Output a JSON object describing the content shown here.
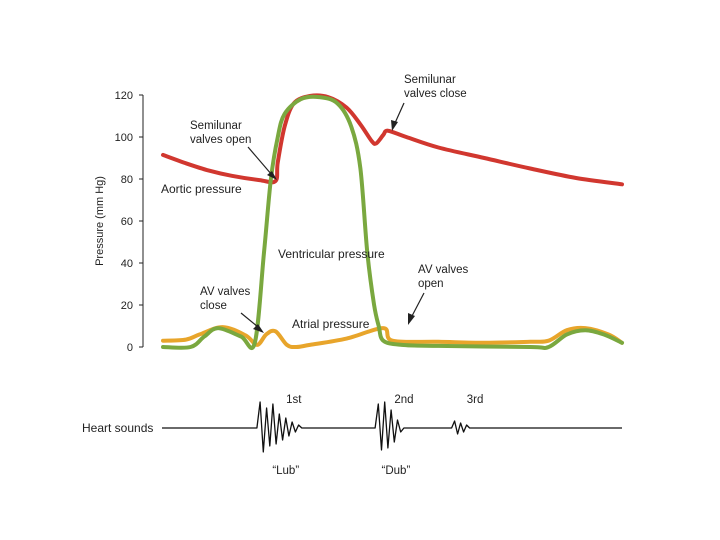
{
  "chart_data": {
    "type": "line",
    "title": "",
    "xlabel": "",
    "ylabel": "Pressure (mm Hg)",
    "ylim": [
      0,
      120
    ],
    "yticks": [
      0,
      20,
      40,
      60,
      80,
      100,
      120
    ],
    "xlim": [
      0,
      1
    ],
    "x_unit": "fraction of cardiac cycle",
    "series": [
      {
        "name": "Aortic pressure",
        "color": "#d1372f",
        "points": [
          [
            0.0,
            91.5
          ],
          [
            0.05,
            87.5
          ],
          [
            0.1,
            84
          ],
          [
            0.15,
            81.5
          ],
          [
            0.21,
            79.5
          ],
          [
            0.245,
            79
          ],
          [
            0.25,
            88
          ],
          [
            0.265,
            105
          ],
          [
            0.285,
            116
          ],
          [
            0.32,
            119.5
          ],
          [
            0.36,
            119
          ],
          [
            0.4,
            114
          ],
          [
            0.43,
            106
          ],
          [
            0.455,
            98
          ],
          [
            0.465,
            97
          ],
          [
            0.48,
            101
          ],
          [
            0.49,
            103
          ],
          [
            0.53,
            100
          ],
          [
            0.6,
            95
          ],
          [
            0.7,
            90
          ],
          [
            0.8,
            85
          ],
          [
            0.9,
            80.5
          ],
          [
            1.0,
            77.5
          ]
        ]
      },
      {
        "name": "Ventricular pressure",
        "color": "#7aa83f",
        "points": [
          [
            0.0,
            0
          ],
          [
            0.06,
            0
          ],
          [
            0.09,
            5
          ],
          [
            0.12,
            9
          ],
          [
            0.17,
            5
          ],
          [
            0.2,
            2
          ],
          [
            0.22,
            45
          ],
          [
            0.235,
            80
          ],
          [
            0.25,
            100
          ],
          [
            0.265,
            111
          ],
          [
            0.3,
            118
          ],
          [
            0.34,
            119
          ],
          [
            0.38,
            116
          ],
          [
            0.41,
            105
          ],
          [
            0.43,
            85
          ],
          [
            0.445,
            45
          ],
          [
            0.46,
            20
          ],
          [
            0.47,
            10
          ],
          [
            0.48,
            3
          ],
          [
            0.52,
            1
          ],
          [
            0.6,
            0.5
          ],
          [
            0.8,
            0
          ],
          [
            0.84,
            0
          ],
          [
            0.88,
            6
          ],
          [
            0.92,
            8
          ],
          [
            0.96,
            6
          ],
          [
            1.0,
            2
          ]
        ]
      },
      {
        "name": "Atrial pressure",
        "color": "#e8a52b",
        "points": [
          [
            0.0,
            3
          ],
          [
            0.05,
            3.5
          ],
          [
            0.08,
            6
          ],
          [
            0.13,
            9.5
          ],
          [
            0.18,
            5.5
          ],
          [
            0.205,
            1
          ],
          [
            0.225,
            6
          ],
          [
            0.245,
            7.5
          ],
          [
            0.27,
            1
          ],
          [
            0.29,
            0
          ],
          [
            0.32,
            1
          ],
          [
            0.4,
            4
          ],
          [
            0.48,
            9
          ],
          [
            0.5,
            3
          ],
          [
            0.6,
            2.5
          ],
          [
            0.7,
            2
          ],
          [
            0.8,
            2.5
          ],
          [
            0.84,
            3
          ],
          [
            0.88,
            8
          ],
          [
            0.92,
            9
          ],
          [
            0.97,
            6
          ],
          [
            1.0,
            2
          ]
        ]
      }
    ],
    "series_labels": [
      "Aortic pressure",
      "Ventricular pressure",
      "Atrial pressure"
    ],
    "annotations": [
      {
        "id": "semilunar-open",
        "lines": [
          "Semilunar",
          "valves open"
        ]
      },
      {
        "id": "semilunar-close",
        "lines": [
          "Semilunar",
          "valves close"
        ]
      },
      {
        "id": "av-close",
        "lines": [
          "AV valves",
          "close"
        ]
      },
      {
        "id": "av-open",
        "lines": [
          "AV valves",
          "open"
        ]
      }
    ],
    "heart_sounds": {
      "label": "Heart sounds",
      "bursts": [
        {
          "name": "1st",
          "caption": "“Lub”",
          "at": 0.25
        },
        {
          "name": "2nd",
          "caption": "“Dub”",
          "at": 0.49
        },
        {
          "name": "3rd",
          "caption": "",
          "at": 0.645
        }
      ]
    }
  }
}
